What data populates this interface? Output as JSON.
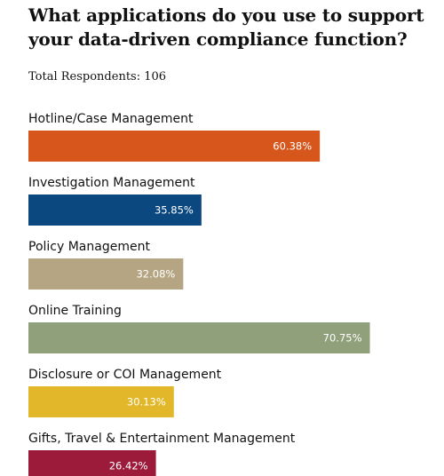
{
  "header": {
    "title": "What applications do you use to support your data-driven compliance function?",
    "respondents": "Total Respondents: 106"
  },
  "chart_data": {
    "type": "bar",
    "orientation": "horizontal",
    "title": "What applications do you use to support your data-driven compliance function?",
    "subtitle": "Total Respondents: 106",
    "xlabel": "",
    "ylabel": "",
    "xlim": [
      0,
      85
    ],
    "grid": false,
    "legend": "none",
    "categories": [
      "Hotline/Case Management",
      "Investigation Management",
      "Policy Management",
      "Online Training",
      "Disclosure or COI Management",
      "Gifts, Travel & Entertainment Management"
    ],
    "values": [
      60.38,
      35.85,
      32.08,
      70.75,
      30.13,
      26.42
    ],
    "value_labels": [
      "60.38%",
      "35.85%",
      "32.08%",
      "70.75%",
      "30.13%",
      "26.42%"
    ],
    "colors": [
      "#d6561c",
      "#0b4880",
      "#b6a582",
      "#8fa07a",
      "#e2b82a",
      "#9c1b3a"
    ]
  }
}
